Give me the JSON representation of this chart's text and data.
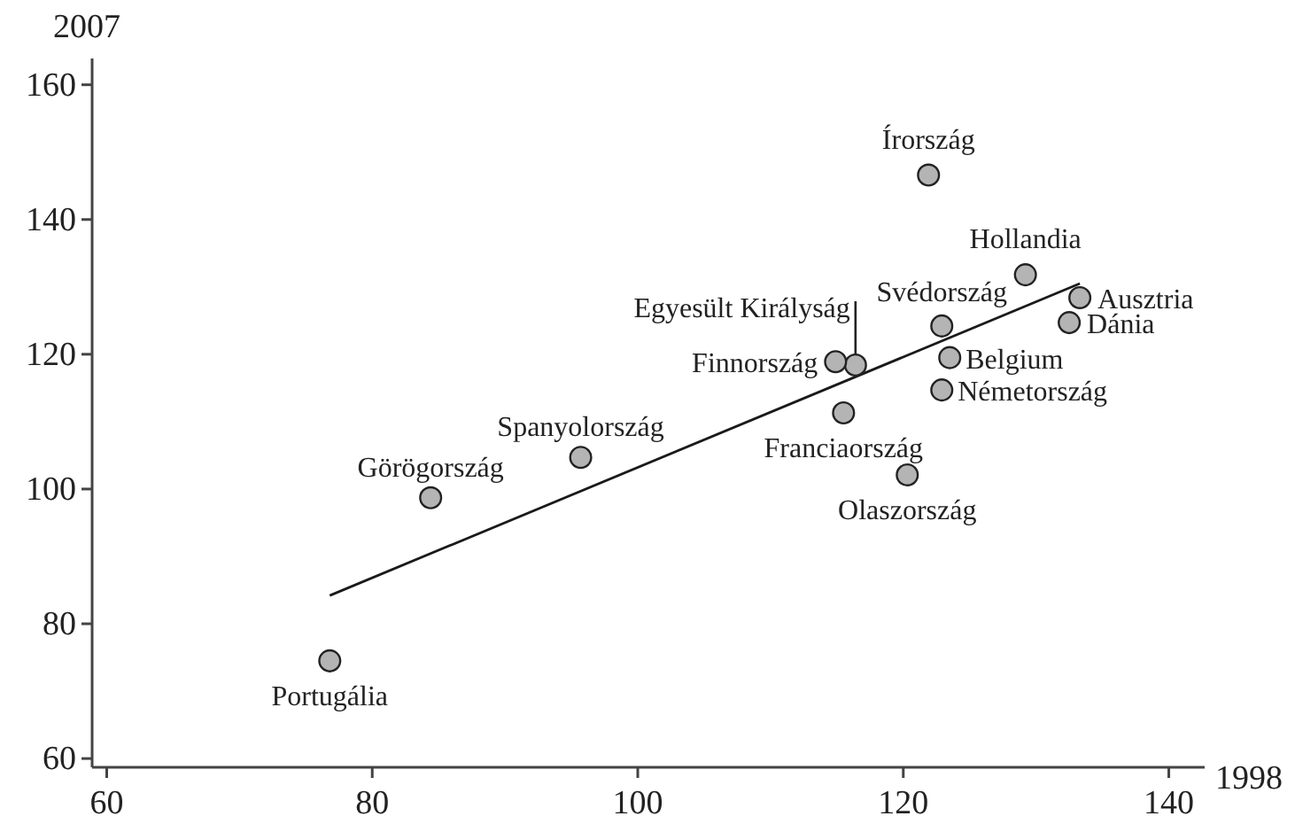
{
  "chart_data": {
    "type": "scatter",
    "xlabel": "1998",
    "ylabel": "2007",
    "xlim": [
      58.9,
      142.7
    ],
    "ylim": [
      58.7,
      163.9
    ],
    "xticks": [
      60,
      80,
      100,
      120,
      140
    ],
    "yticks": [
      60,
      80,
      100,
      120,
      140,
      160
    ],
    "grid": false,
    "series": [
      {
        "marker": "circle",
        "color": "#b4b4b4",
        "x": [
          121.9,
          129.2,
          133.3,
          132.5,
          122.9,
          123.5,
          122.9,
          116.4,
          114.9,
          115.5,
          120.3,
          95.7,
          84.4,
          76.8
        ],
        "values": [
          146.6,
          131.8,
          128.4,
          124.7,
          124.2,
          119.5,
          114.7,
          118.4,
          118.9,
          111.3,
          102.1,
          104.7,
          98.7,
          74.5
        ]
      },
      {
        "type": "line",
        "marker": "none",
        "color": "#1a1a1a",
        "x": [
          76.8,
          133.3
        ],
        "values": [
          84.2,
          130.5
        ]
      }
    ],
    "annotations": [
      {
        "text": "Írország",
        "x": 121.9,
        "y": 146.6
      },
      {
        "text": "Hollandia",
        "x": 129.2,
        "y": 131.8
      },
      {
        "text": "Ausztria",
        "x": 133.3,
        "y": 128.4
      },
      {
        "text": "Dánia",
        "x": 132.5,
        "y": 124.7
      },
      {
        "text": "Svédország",
        "x": 122.9,
        "y": 124.2
      },
      {
        "text": "Belgium",
        "x": 123.5,
        "y": 119.5
      },
      {
        "text": "Németország",
        "x": 122.9,
        "y": 114.7
      },
      {
        "text": "Egyesült Királyság",
        "x": 116.4,
        "y": 118.4
      },
      {
        "text": "Finnország",
        "x": 114.9,
        "y": 118.9
      },
      {
        "text": "Franciaország",
        "x": 115.5,
        "y": 111.3
      },
      {
        "text": "Olaszország",
        "x": 120.3,
        "y": 102.1
      },
      {
        "text": "Spanyolország",
        "x": 95.7,
        "y": 104.7
      },
      {
        "text": "Görögország",
        "x": 84.4,
        "y": 98.7
      },
      {
        "text": "Portugália",
        "x": 76.8,
        "y": 74.5
      }
    ]
  }
}
